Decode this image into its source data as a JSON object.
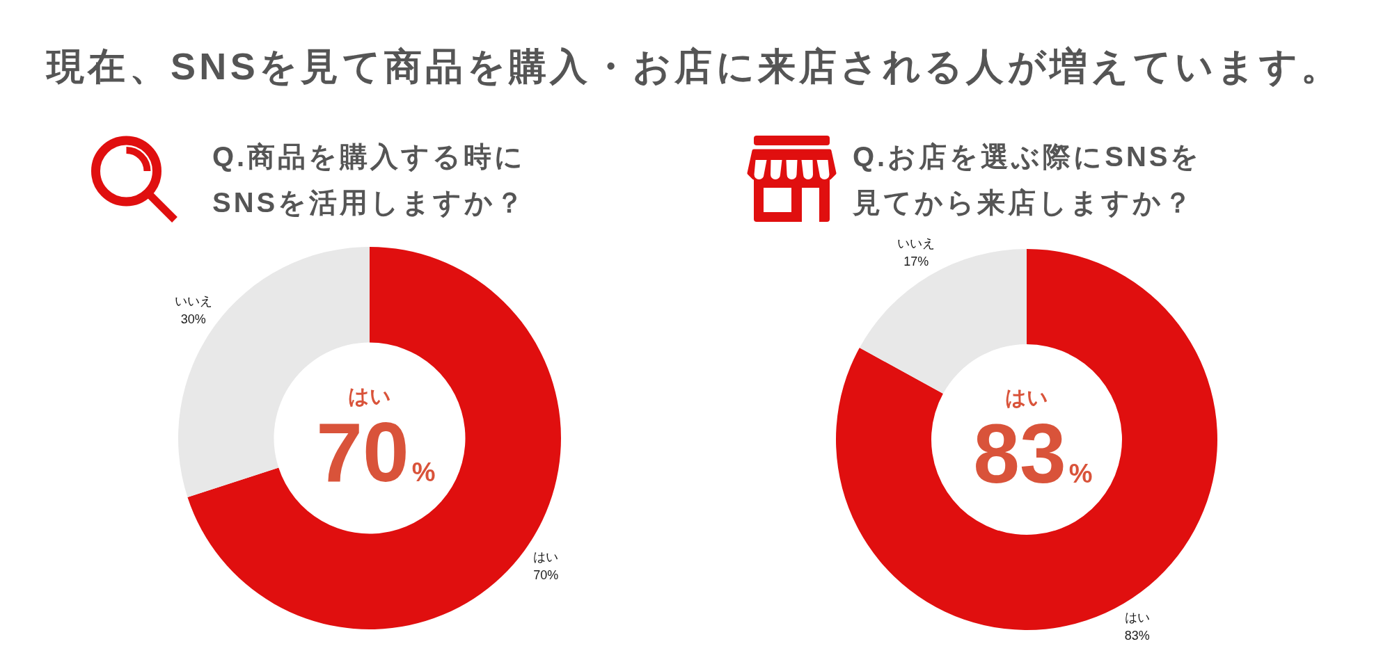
{
  "chart_data": [
    {
      "type": "other",
      "title": "現在、SNSを見て商品を購入・お店に来店される人が増えています。"
    },
    {
      "type": "donut",
      "title": "Q.商品を購入する時にSNSを活用しますか？",
      "categories": [
        "はい",
        "いいえ"
      ],
      "values": [
        70,
        30
      ],
      "colors": [
        "#e00f0f",
        "#e8e8e8"
      ],
      "value_labels": [
        "70%",
        "30%"
      ],
      "annotations": [
        "はい",
        "70%"
      ]
    },
    {
      "type": "donut",
      "title": "Q.お店を選ぶ際にSNSを見てから来店しますか？",
      "categories": [
        "はい",
        "いいえ"
      ],
      "values": [
        83,
        17
      ],
      "colors": [
        "#e00f0f",
        "#e8e8e8"
      ],
      "value_labels": [
        "83%",
        "17%"
      ],
      "annotations": [
        "はい",
        "83%"
      ]
    }
  ]
}
